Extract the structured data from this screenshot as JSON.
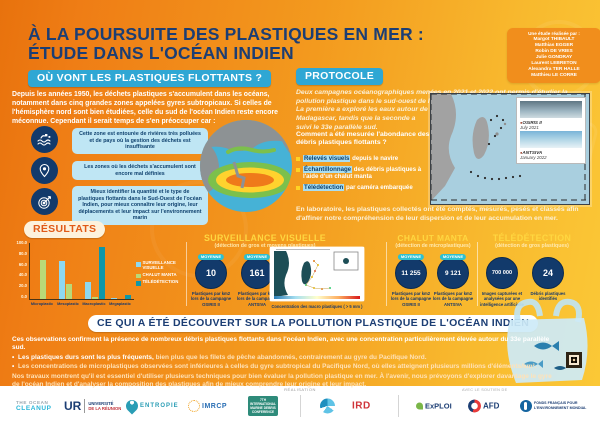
{
  "header": {
    "title_line1": "À LA POURSUITE DES PLASTIQUES EN MER :",
    "title_line2": "ÉTUDE DANS L'OCÉAN INDIEN",
    "credits": {
      "heading": "Une étude réalisée par :",
      "authors": [
        "Margot THIBAULT",
        "Matthias EGGER",
        "Robin DE VRIES",
        "Julie GONDRAY",
        "Laurent LEBRETON",
        "Alexandra TER HALLE",
        "Matthieu LE CORRE"
      ]
    }
  },
  "where": {
    "heading": "OÙ VONT LES PLASTIQUES FLOTTANTS ?",
    "intro": "Depuis les années 1950, les déchets plastiques s'accumulent dans les océans, notamment dans cinq grandes zones appelées gyres subtropicaux. Si celles de l'hémisphère nord sont bien étudiées, celle du sud de l'océan Indien reste encore méconnue. Cependant il serait temps de s'en préoccuper car :",
    "points": [
      {
        "icon": "polluted-river-icon",
        "text": "Cette zone est entourée de rivières très polluées et de pays où la gestion des déchets est insuffisante"
      },
      {
        "icon": "location-pin-icon",
        "text": "Les zones où les déchets s'accumulent sont encore mal définies"
      },
      {
        "icon": "target-icon",
        "text": "Mieux identifier la quantité et le type de plastiques flottants dans le Sud-Ouest de l'océan Indien, pour mieux connaître leur origine, leur déplacements et leur impact sur l'environnement marin"
      }
    ]
  },
  "protocole": {
    "heading": "PROTOCOLE",
    "intro_part1": "Deux campagnes océanographiques menées en 2021 et 2022 ont permis d'étudier la pollution plastique dans le sud-ouest de l'océan Indien.",
    "intro_part2": "La première a exploré les eaux autour de Madagascar, tandis que la seconde a suivi le 33e parallèle sud.",
    "question": "Comment a été mesurée l'abondance des débris plastiques flottants ?",
    "methods": [
      {
        "highlight": "Relevés visuels",
        "rest": " depuis le navire"
      },
      {
        "highlight": "Échantillonnage",
        "rest": " des débris plastiques à l'aide d'un chalut manta"
      },
      {
        "highlight": "Télédétection",
        "rest": " par caméra embarquée"
      }
    ],
    "lab_note": "En laboratoire, les plastiques collectés ont été comptés, mesurés, pesés et classés afin d'affiner notre compréhension de leur dispersion et de leur accumulation en mer.",
    "map_legend": [
      {
        "name": "OSIRIS II",
        "date": "July 2021"
      },
      {
        "name": "ANTSIVA",
        "date": "January 2022"
      }
    ]
  },
  "resultats": {
    "heading": "RÉSULTATS",
    "panels": {
      "surveillance": {
        "title": "SURVEILLANCE VISUELLE",
        "subtitle": "(détection de gros et moyens plastiques)",
        "stats": [
          {
            "badge": "MOYENNE",
            "value": "10",
            "label": "Plastiques par km2 lors de la campagne OSIRIS II"
          },
          {
            "badge": "MOYENNE",
            "value": "161",
            "label": "Plastiques par km2 lors de la campagne ANTSIVA"
          }
        ],
        "map_caption": "Concentration des macro plastiques ( > 5 mm )"
      },
      "chalut": {
        "title": "CHALUT MANTA",
        "subtitle": "(détection de microplastiques)",
        "stats": [
          {
            "badge": "MOYENNE",
            "value": "11 255",
            "label": "Plastiques par km2 lors de la campagne OSIRIS II"
          },
          {
            "badge": "MOYENNE",
            "value": "9 121",
            "label": "Plastiques par km2 lors de la campagne ANTSIVA"
          }
        ]
      },
      "teledetection": {
        "title": "TÉLÉDÉTECTION",
        "subtitle": "(détection de gros plastiques)",
        "stats": [
          {
            "badge": "",
            "value": "700 000",
            "label": "Images capturées et analysées par une intelligence artificielle"
          },
          {
            "badge": "",
            "value": "24",
            "label": "Débris plastiques identifiés"
          }
        ]
      }
    }
  },
  "chart_data": {
    "type": "bar",
    "title": "",
    "categories": [
      "Microplastic",
      "Mesoplastic",
      "Macroplastic",
      "Megaplastic"
    ],
    "series": [
      {
        "name": "SURVEILLANCE VISUELLE",
        "color": "#8ed8f0",
        "values": [
          0,
          68,
          31,
          1
        ]
      },
      {
        "name": "CHALUT MANTA",
        "color": "#b9d978",
        "values": [
          70,
          27,
          3,
          0
        ]
      },
      {
        "name": "TÉLÉDÉTECTION",
        "color": "#0f97a8",
        "values": [
          0,
          0,
          92,
          8
        ]
      }
    ],
    "ylim": [
      0,
      100
    ],
    "yticks": [
      "100.0",
      "80.0",
      "60.0",
      "40.0",
      "20.0",
      "0.0"
    ],
    "unit": "%",
    "legend_position": "right",
    "grid": false
  },
  "discoveries": {
    "heading": "CE QUI A ÉTÉ DÉCOUVERT SUR LA POLLUTION PLASTIQUE DE L'OCÉAN INDIEN",
    "intro": "Ces observations confirment la présence de nombreux débris plastiques flottants dans l'océan Indien, avec une concentration particulièrement élevée autour du 33e parallèle sud.",
    "bullets": [
      {
        "bold": "Les plastiques durs sont les plus fréquents,",
        "rest": " bien plus que les filets de pêche abandonnés, contrairement au gyre du Pacifique Nord."
      },
      {
        "bold": "",
        "rest": "Les concentrations de microplastiques observées sont inférieures à celles du gyre subtropical du Pacifique Nord, où elles atteignent plusieurs millions d'éléments/km²."
      }
    ],
    "outro": "Nos travaux montrent qu'il est essentiel d'utiliser plusieurs techniques pour bien évaluer la pollution plastique en mer. À l'avenir, nous prévoyons d'explorer davantage le gyre de l'océan Indien et d'analyser la composition des plastiques afin de mieux comprendre leur origine et leur impact."
  },
  "footer": {
    "realisation_label": "RÉALISATION",
    "support_label": "AVEC LE SOUTIEN DE",
    "logos": {
      "ocean_cleanup_line1": "THE OCEAN",
      "ocean_cleanup_line2": "CLEANUP",
      "ur_abbr": "UR",
      "ur_line1": "UNIVERSITÉ",
      "ur_line2": "DE LA RÉUNION",
      "entropie": "ENTROPIE",
      "imrcp": "IMRCP",
      "imdc_line1": "7TH INTERNATIONAL",
      "imdc_line2": "MARINE DEBRIS",
      "imdc_line3": "CONFERENCE",
      "ird": "IRD",
      "exploi": "ExPLOI",
      "afd": "AFD",
      "ffem_line1": "FONDS FRANÇAIS POUR",
      "ffem_line2": "L'ENVIRONNEMENT MONDIAL"
    }
  },
  "colors": {
    "accent_teal": "#2fa7d4",
    "navy": "#123a6b",
    "title_yellow": "#ffd740",
    "background_orange": "#ef7d15"
  }
}
